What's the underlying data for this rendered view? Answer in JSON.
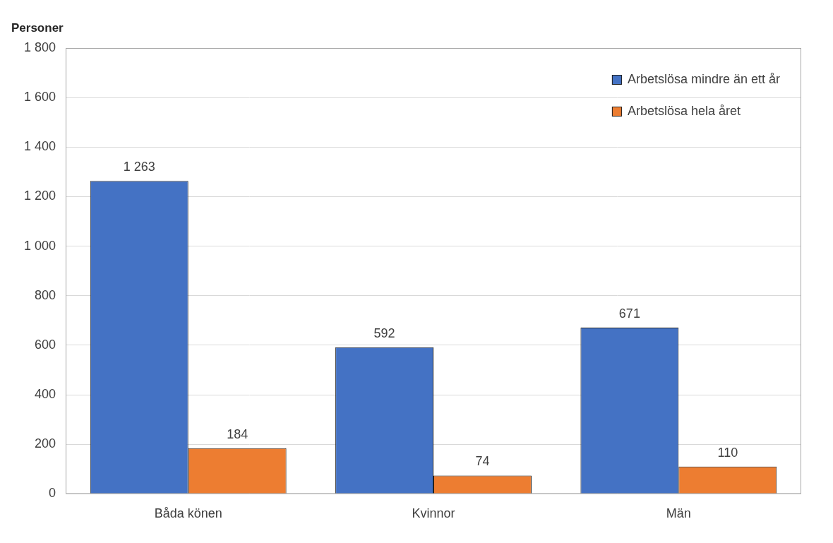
{
  "chart_data": {
    "type": "bar",
    "y_label": "Personer",
    "categories": [
      "Båda könen",
      "Kvinnor",
      "Män"
    ],
    "series": [
      {
        "name": "Arbetslösa mindre än ett år",
        "color": "#4472c4",
        "values": [
          1263,
          592,
          671
        ],
        "value_labels": [
          "1 263",
          "592",
          "671"
        ]
      },
      {
        "name": "Arbetslösa hela året",
        "color": "#ed7d31",
        "values": [
          184,
          74,
          110
        ],
        "value_labels": [
          "184",
          "74",
          "110"
        ]
      }
    ],
    "ylim": [
      0,
      1800
    ],
    "yticks": [
      0,
      200,
      400,
      600,
      800,
      {
        "value": 1000,
        "label": "1 000"
      },
      {
        "value": 1200,
        "label": "1 200"
      },
      {
        "value": 1400,
        "label": "1 400"
      },
      {
        "value": 1600,
        "label": "1 600"
      },
      {
        "value": 1800,
        "label": "1 800"
      }
    ],
    "grid": true,
    "legend": "top-right",
    "data_labels": true
  }
}
